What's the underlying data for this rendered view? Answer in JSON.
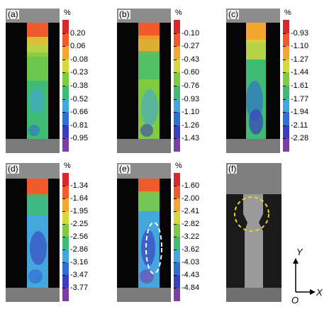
{
  "unit": "%",
  "colors": [
    "#7b3ea8",
    "#3a3fbf",
    "#2f6fd0",
    "#43a6dc",
    "#3fbb73",
    "#7fcb3f",
    "#d5d93a",
    "#f5a62f",
    "#ee5a2b",
    "#d9282b"
  ],
  "panels": [
    {
      "label": "(a)",
      "ticks": [
        "0.20",
        "0.06",
        "-0.08",
        "-0.23",
        "-0.38",
        "-0.52",
        "-0.66",
        "-0.81",
        "-0.95"
      ]
    },
    {
      "label": "(b)",
      "ticks": [
        "-0.10",
        "-0.27",
        "-0.43",
        "-0.60",
        "-0.76",
        "-0.93",
        "-1.10",
        "-1.26",
        "-1.43"
      ]
    },
    {
      "label": "(c)",
      "ticks": [
        "-0.93",
        "-1.10",
        "-1.27",
        "-1.44",
        "-1.61",
        "-1.77",
        "-1.94",
        "-2.11",
        "-2.28"
      ]
    },
    {
      "label": "(d)",
      "ticks": [
        "-1.34",
        "-1.64",
        "-1.95",
        "-2.25",
        "-2.56",
        "-2.86",
        "-3.16",
        "-3.47",
        "-3.77"
      ]
    },
    {
      "label": "(e)",
      "ticks": [
        "-1.60",
        "-2.00",
        "-2.41",
        "-2.82",
        "-3.22",
        "-3.62",
        "-4.03",
        "-4.43",
        "-4.84"
      ]
    },
    {
      "label": "(f)"
    }
  ],
  "axes": {
    "y": "Y",
    "x": "X",
    "origin": "O"
  }
}
